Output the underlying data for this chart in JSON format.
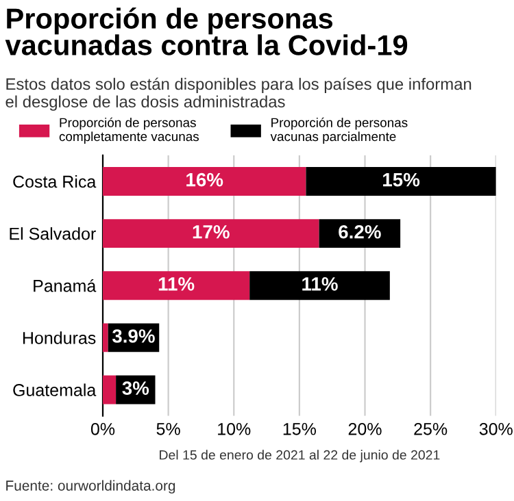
{
  "chart_data": {
    "type": "bar",
    "orientation": "horizontal",
    "stacked": true,
    "title": "Proporción de personas\nvacunadas contra la Covid-19",
    "subtitle": "Estos datos solo están disponibles para los países que informan\nel desglose de las dosis administradas",
    "xlabel": "Del 15 de enero de 2021 al 22 de junio de 2021",
    "annotations": [
      "Fuente: ourworldindata.org"
    ],
    "categories": [
      "Costa Rica",
      "El Salvador",
      "Panamá",
      "Honduras",
      "Guatemala"
    ],
    "series": [
      {
        "name": "Proporción de personas\ncompletamente vacunas",
        "color": "#d6174f",
        "values": [
          15.5,
          16.5,
          11.2,
          0.4,
          1.0
        ],
        "value_labels": [
          "16%",
          "17%",
          "11%",
          null,
          null
        ]
      },
      {
        "name": "Proporción de personas\nvacunas parcialmente",
        "color": "#000000",
        "values": [
          14.5,
          6.2,
          10.7,
          3.9,
          3.0
        ],
        "value_labels": [
          "15%",
          "6.2%",
          "11%",
          "3.9%",
          "3%"
        ]
      }
    ],
    "xlim": [
      0,
      30
    ],
    "xticks": [
      {
        "value": 0,
        "label": "0%"
      },
      {
        "value": 5,
        "label": "5%"
      },
      {
        "value": 10,
        "label": "10%"
      },
      {
        "value": 15,
        "label": "15%"
      },
      {
        "value": 20,
        "label": "20%"
      },
      {
        "value": 25,
        "label": "25%"
      },
      {
        "value": 30,
        "label": "30%"
      }
    ],
    "grid": "x",
    "legend": "top"
  }
}
